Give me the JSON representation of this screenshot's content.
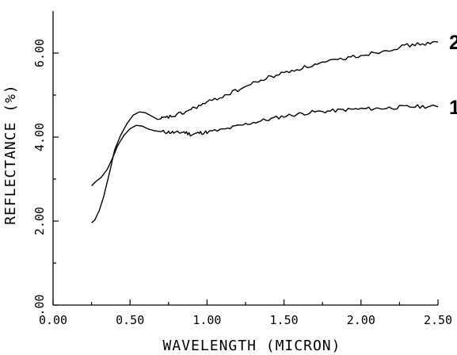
{
  "chart_data": {
    "type": "line",
    "xlabel": "WAVELENGTH (MICRON)",
    "ylabel": "REFLECTANCE (%)",
    "xlim": [
      0.0,
      2.5
    ],
    "ylim": [
      0.0,
      7.0
    ],
    "x_ticks": [
      0.0,
      0.5,
      1.0,
      1.5,
      2.0,
      2.5
    ],
    "x_tick_labels": [
      "0.00",
      "0.50",
      "1.00",
      "1.50",
      "2.00",
      "2.50"
    ],
    "y_ticks": [
      0.0,
      2.0,
      4.0,
      6.0
    ],
    "y_tick_labels": [
      ".00",
      "2.00",
      "4.00",
      "6.00"
    ],
    "grid": false,
    "series": [
      {
        "name": "1",
        "points": [
          [
            0.25,
            2.84
          ],
          [
            0.28,
            2.95
          ],
          [
            0.31,
            3.03
          ],
          [
            0.35,
            3.22
          ],
          [
            0.38,
            3.45
          ],
          [
            0.42,
            3.8
          ],
          [
            0.46,
            4.04
          ],
          [
            0.5,
            4.2
          ],
          [
            0.54,
            4.28
          ],
          [
            0.58,
            4.26
          ],
          [
            0.62,
            4.19
          ],
          [
            0.66,
            4.15
          ],
          [
            0.7,
            4.13
          ],
          [
            0.75,
            4.12
          ],
          [
            0.8,
            4.1
          ],
          [
            0.85,
            4.12
          ],
          [
            0.9,
            4.06
          ],
          [
            0.95,
            4.1
          ],
          [
            1.0,
            4.12
          ],
          [
            1.1,
            4.17
          ],
          [
            1.2,
            4.26
          ],
          [
            1.3,
            4.35
          ],
          [
            1.4,
            4.42
          ],
          [
            1.5,
            4.5
          ],
          [
            1.6,
            4.55
          ],
          [
            1.7,
            4.6
          ],
          [
            1.8,
            4.62
          ],
          [
            1.9,
            4.65
          ],
          [
            2.0,
            4.67
          ],
          [
            2.1,
            4.68
          ],
          [
            2.2,
            4.7
          ],
          [
            2.3,
            4.72
          ],
          [
            2.4,
            4.73
          ],
          [
            2.5,
            4.72
          ]
        ]
      },
      {
        "name": "2",
        "points": [
          [
            0.25,
            1.96
          ],
          [
            0.27,
            2.02
          ],
          [
            0.3,
            2.25
          ],
          [
            0.33,
            2.6
          ],
          [
            0.37,
            3.2
          ],
          [
            0.4,
            3.7
          ],
          [
            0.44,
            4.05
          ],
          [
            0.48,
            4.32
          ],
          [
            0.52,
            4.52
          ],
          [
            0.56,
            4.6
          ],
          [
            0.6,
            4.58
          ],
          [
            0.64,
            4.5
          ],
          [
            0.68,
            4.42
          ],
          [
            0.72,
            4.45
          ],
          [
            0.78,
            4.5
          ],
          [
            0.85,
            4.58
          ],
          [
            0.92,
            4.7
          ],
          [
            1.0,
            4.82
          ],
          [
            1.1,
            4.97
          ],
          [
            1.2,
            5.12
          ],
          [
            1.3,
            5.28
          ],
          [
            1.4,
            5.42
          ],
          [
            1.5,
            5.53
          ],
          [
            1.6,
            5.63
          ],
          [
            1.7,
            5.72
          ],
          [
            1.8,
            5.8
          ],
          [
            1.9,
            5.88
          ],
          [
            2.0,
            5.95
          ],
          [
            2.1,
            6.02
          ],
          [
            2.2,
            6.1
          ],
          [
            2.3,
            6.18
          ],
          [
            2.4,
            6.22
          ],
          [
            2.5,
            6.26
          ]
        ]
      }
    ]
  }
}
